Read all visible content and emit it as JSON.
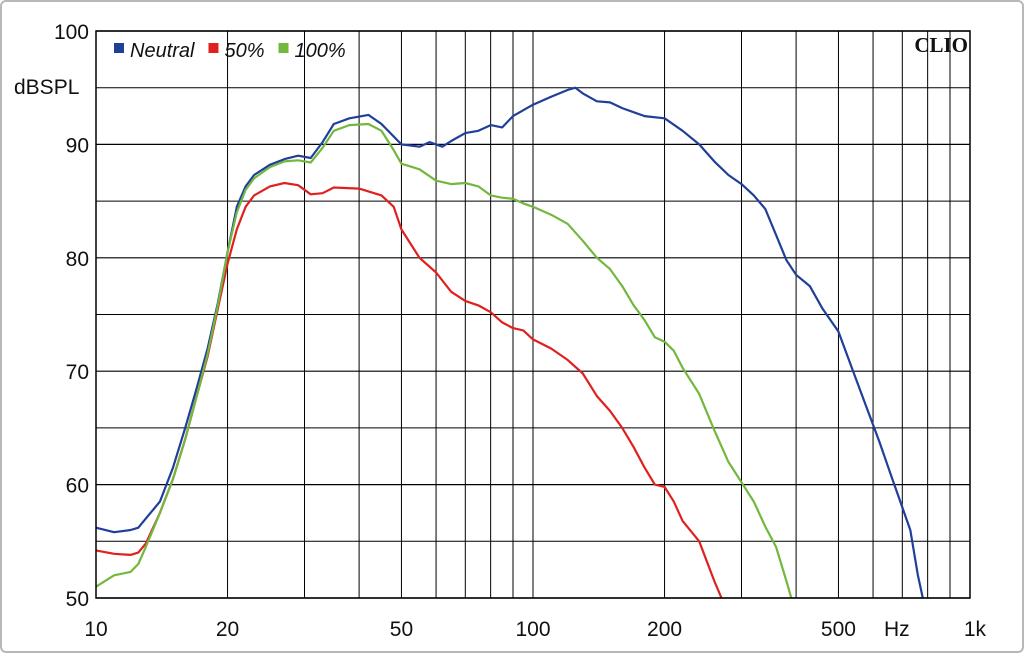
{
  "chart_data": {
    "type": "line",
    "x_scale": "log",
    "xlim": [
      10,
      1000
    ],
    "ylim": [
      50,
      100
    ],
    "ylabel": "dBSPL",
    "xlabel": "Hz",
    "brand": "CLIO",
    "grid": true,
    "legend_position": "top-left",
    "x_ticks": [
      {
        "value": 10,
        "label": "10"
      },
      {
        "value": 20,
        "label": "20"
      },
      {
        "value": 50,
        "label": "50"
      },
      {
        "value": 100,
        "label": "100"
      },
      {
        "value": 200,
        "label": "200"
      },
      {
        "value": 500,
        "label": "500"
      },
      {
        "value": 1000,
        "label": "1k"
      }
    ],
    "y_ticks": [
      {
        "value": 100,
        "label": "100"
      },
      {
        "value": 90,
        "label": "90"
      },
      {
        "value": 80,
        "label": "80"
      },
      {
        "value": 70,
        "label": "70"
      },
      {
        "value": 60,
        "label": "60"
      },
      {
        "value": 50,
        "label": "50"
      }
    ],
    "series": [
      {
        "name": "Neutral",
        "color": "#1f3f99",
        "points": [
          [
            10,
            56.2
          ],
          [
            11,
            55.8
          ],
          [
            12,
            56
          ],
          [
            12.5,
            56.2
          ],
          [
            13,
            57
          ],
          [
            14,
            58.5
          ],
          [
            15,
            61.5
          ],
          [
            16,
            65
          ],
          [
            17,
            68.5
          ],
          [
            18,
            72
          ],
          [
            19,
            76
          ],
          [
            20,
            80.5
          ],
          [
            21,
            84.5
          ],
          [
            22,
            86.3
          ],
          [
            23,
            87.3
          ],
          [
            25,
            88.2
          ],
          [
            27,
            88.7
          ],
          [
            29,
            89
          ],
          [
            31,
            88.8
          ],
          [
            33,
            90.2
          ],
          [
            35,
            91.8
          ],
          [
            38,
            92.3
          ],
          [
            42,
            92.6
          ],
          [
            45,
            91.8
          ],
          [
            50,
            90
          ],
          [
            55,
            89.8
          ],
          [
            58,
            90.2
          ],
          [
            62,
            89.8
          ],
          [
            65,
            90.3
          ],
          [
            70,
            91
          ],
          [
            75,
            91.2
          ],
          [
            80,
            91.7
          ],
          [
            85,
            91.5
          ],
          [
            90,
            92.5
          ],
          [
            100,
            93.5
          ],
          [
            110,
            94.2
          ],
          [
            120,
            94.8
          ],
          [
            125,
            95
          ],
          [
            130,
            94.5
          ],
          [
            140,
            93.8
          ],
          [
            150,
            93.7
          ],
          [
            160,
            93.2
          ],
          [
            180,
            92.5
          ],
          [
            200,
            92.3
          ],
          [
            220,
            91.2
          ],
          [
            240,
            90
          ],
          [
            260,
            88.5
          ],
          [
            280,
            87.3
          ],
          [
            300,
            86.5
          ],
          [
            320,
            85.5
          ],
          [
            340,
            84.3
          ],
          [
            360,
            82
          ],
          [
            380,
            79.8
          ],
          [
            400,
            78.5
          ],
          [
            430,
            77.5
          ],
          [
            460,
            75.5
          ],
          [
            500,
            73.5
          ],
          [
            540,
            70
          ],
          [
            580,
            66.8
          ],
          [
            620,
            63.8
          ],
          [
            660,
            60.8
          ],
          [
            700,
            58
          ],
          [
            730,
            56
          ],
          [
            760,
            52
          ],
          [
            780,
            50
          ]
        ]
      },
      {
        "name": "50%",
        "color": "#e02020",
        "points": [
          [
            10,
            54.2
          ],
          [
            11,
            53.9
          ],
          [
            12,
            53.8
          ],
          [
            12.5,
            54
          ],
          [
            13,
            54.8
          ],
          [
            14,
            57.5
          ],
          [
            15,
            60.5
          ],
          [
            16,
            64
          ],
          [
            17,
            67.8
          ],
          [
            18,
            71.3
          ],
          [
            19,
            75.5
          ],
          [
            20,
            79.5
          ],
          [
            21,
            82.5
          ],
          [
            22,
            84.5
          ],
          [
            23,
            85.5
          ],
          [
            25,
            86.3
          ],
          [
            27,
            86.6
          ],
          [
            29,
            86.4
          ],
          [
            31,
            85.6
          ],
          [
            33,
            85.7
          ],
          [
            35,
            86.2
          ],
          [
            40,
            86.1
          ],
          [
            45,
            85.5
          ],
          [
            48,
            84.5
          ],
          [
            50,
            82.5
          ],
          [
            55,
            80
          ],
          [
            60,
            78.7
          ],
          [
            65,
            77
          ],
          [
            70,
            76.2
          ],
          [
            75,
            75.8
          ],
          [
            80,
            75.2
          ],
          [
            85,
            74.3
          ],
          [
            90,
            73.8
          ],
          [
            95,
            73.6
          ],
          [
            100,
            72.8
          ],
          [
            110,
            72
          ],
          [
            120,
            71
          ],
          [
            130,
            69.8
          ],
          [
            140,
            67.8
          ],
          [
            150,
            66.5
          ],
          [
            160,
            65
          ],
          [
            170,
            63.3
          ],
          [
            180,
            61.5
          ],
          [
            190,
            60
          ],
          [
            200,
            59.8
          ],
          [
            210,
            58.5
          ],
          [
            220,
            56.8
          ],
          [
            240,
            55
          ],
          [
            260,
            51.5
          ],
          [
            270,
            50
          ]
        ]
      },
      {
        "name": "100%",
        "color": "#72b83e",
        "points": [
          [
            10,
            51
          ],
          [
            11,
            52
          ],
          [
            12,
            52.3
          ],
          [
            12.5,
            53
          ],
          [
            13,
            54.5
          ],
          [
            14,
            57.5
          ],
          [
            15,
            60.5
          ],
          [
            16,
            64
          ],
          [
            17,
            67.8
          ],
          [
            18,
            71.5
          ],
          [
            19,
            75.8
          ],
          [
            20,
            80.5
          ],
          [
            21,
            84
          ],
          [
            22,
            86
          ],
          [
            23,
            87
          ],
          [
            25,
            88
          ],
          [
            27,
            88.5
          ],
          [
            29,
            88.6
          ],
          [
            31,
            88.4
          ],
          [
            33,
            89.7
          ],
          [
            35,
            91.2
          ],
          [
            38,
            91.7
          ],
          [
            42,
            91.8
          ],
          [
            45,
            91.2
          ],
          [
            48,
            89.5
          ],
          [
            50,
            88.3
          ],
          [
            55,
            87.8
          ],
          [
            60,
            86.8
          ],
          [
            65,
            86.5
          ],
          [
            70,
            86.6
          ],
          [
            75,
            86.3
          ],
          [
            80,
            85.5
          ],
          [
            85,
            85.3
          ],
          [
            90,
            85.2
          ],
          [
            95,
            84.8
          ],
          [
            100,
            84.5
          ],
          [
            110,
            83.8
          ],
          [
            120,
            83
          ],
          [
            130,
            81.5
          ],
          [
            140,
            80
          ],
          [
            150,
            79
          ],
          [
            160,
            77.5
          ],
          [
            170,
            75.8
          ],
          [
            180,
            74.5
          ],
          [
            190,
            73
          ],
          [
            200,
            72.6
          ],
          [
            210,
            71.8
          ],
          [
            220,
            70.3
          ],
          [
            240,
            68
          ],
          [
            260,
            64.8
          ],
          [
            280,
            62
          ],
          [
            300,
            60.2
          ],
          [
            320,
            58.5
          ],
          [
            340,
            56.3
          ],
          [
            360,
            54.5
          ],
          [
            380,
            51.5
          ],
          [
            390,
            50
          ]
        ]
      }
    ]
  }
}
